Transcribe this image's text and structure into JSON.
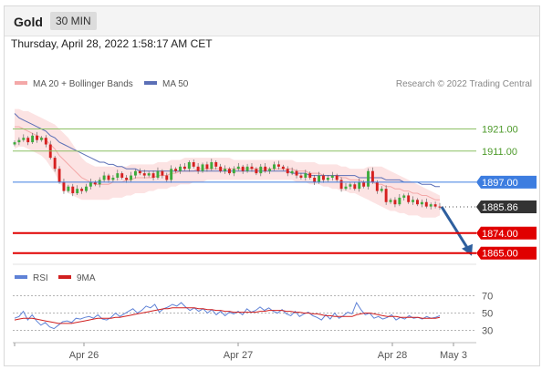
{
  "header": {
    "instrument": "Gold",
    "timeframe": "30 MIN",
    "datetime": "Thursday, April 28, 2022 1:58:17 AM CET"
  },
  "legend": {
    "ma20_bb": "MA 20 + Bollinger Bands",
    "ma50": "MA 50",
    "credit": "Research © 2022 Trading Central"
  },
  "rsi_legend": {
    "rsi": "RSI",
    "ma9": "9MA"
  },
  "colors": {
    "candle_up": "#3cab3c",
    "candle_down": "#d62020",
    "bollinger": "#fbd9d9",
    "ma20": "#f4a8a8",
    "ma50": "#5b6fb6",
    "resistance": "#8cc063",
    "pivot": "#3d7de0",
    "support": "#e00000",
    "last_price": "#333333",
    "arrow": "#2e5f9e",
    "rsi": "#5f82d6",
    "rsi_ma": "#d12020"
  },
  "chart_data": {
    "type": "line",
    "x_ticks": [
      "Apr 26",
      "Apr 27",
      "Apr 28",
      "May 3"
    ],
    "ylim": [
      1862,
      1936
    ],
    "levels": [
      {
        "label": "1921.00",
        "value": 1921.0,
        "kind": "resistance"
      },
      {
        "label": "1911.00",
        "value": 1911.0,
        "kind": "resistance"
      },
      {
        "label": "1897.00",
        "value": 1897.0,
        "kind": "pivot"
      },
      {
        "label": "1885.86",
        "value": 1885.86,
        "kind": "last"
      },
      {
        "label": "1874.00",
        "value": 1874.0,
        "kind": "support"
      },
      {
        "label": "1865.00",
        "value": 1865.0,
        "kind": "support"
      }
    ],
    "price_close": [
      1915,
      1916,
      1917,
      1915,
      1918,
      1916,
      1917,
      1914,
      1908,
      1903,
      1897,
      1893,
      1895,
      1892,
      1894,
      1893,
      1895,
      1897,
      1896,
      1898,
      1900,
      1898,
      1899,
      1901,
      1899,
      1898,
      1900,
      1902,
      1901,
      1900,
      1901,
      1899,
      1902,
      1900,
      1898,
      1903,
      1902,
      1904,
      1903,
      1906,
      1904,
      1902,
      1905,
      1903,
      1906,
      1904,
      1902,
      1903,
      1901,
      1903,
      1904,
      1902,
      1904,
      1903,
      1901,
      1904,
      1902,
      1903,
      1905,
      1904,
      1903,
      1901,
      1902,
      1900,
      1899,
      1901,
      1899,
      1897,
      1900,
      1898,
      1899,
      1900,
      1898,
      1894,
      1895,
      1896,
      1894,
      1897,
      1895,
      1902,
      1897,
      1893,
      1894,
      1888,
      1889,
      1887,
      1890,
      1891,
      1888,
      1889,
      1887,
      1888,
      1886,
      1887,
      1886,
      1885.86
    ],
    "ma50": [
      1928,
      1926,
      1925,
      1924,
      1923,
      1922,
      1921,
      1920,
      1918,
      1917,
      1915,
      1914,
      1913,
      1912,
      1911,
      1910,
      1909,
      1908,
      1907,
      1906,
      1906,
      1905,
      1905,
      1904,
      1904,
      1903,
      1903,
      1903,
      1902,
      1902,
      1902,
      1902,
      1902,
      1902,
      1902,
      1902,
      1902,
      1902,
      1902,
      1902,
      1902,
      1902,
      1902,
      1902,
      1902,
      1902,
      1902,
      1902,
      1902,
      1902,
      1902,
      1902,
      1902,
      1902,
      1902,
      1902,
      1902,
      1902,
      1902,
      1902,
      1902,
      1902,
      1901,
      1901,
      1901,
      1901,
      1900,
      1900,
      1900,
      1900,
      1900,
      1900,
      1900,
      1900,
      1900,
      1900,
      1900,
      1899,
      1899,
      1899,
      1899,
      1899,
      1899,
      1898,
      1898,
      1898,
      1898,
      1897,
      1897,
      1897,
      1897,
      1896,
      1896,
      1896,
      1895,
      1895
    ],
    "ma20": [
      1922,
      1922,
      1921,
      1920,
      1919,
      1918,
      1917,
      1916,
      1914,
      1912,
      1909,
      1907,
      1905,
      1903,
      1901,
      1899,
      1898,
      1897,
      1896,
      1896,
      1896,
      1896,
      1897,
      1897,
      1897,
      1898,
      1898,
      1899,
      1899,
      1899,
      1899,
      1899,
      1900,
      1900,
      1900,
      1901,
      1901,
      1902,
      1902,
      1902,
      1902,
      1903,
      1903,
      1903,
      1903,
      1903,
      1903,
      1903,
      1903,
      1903,
      1903,
      1903,
      1903,
      1903,
      1903,
      1903,
      1903,
      1903,
      1903,
      1903,
      1903,
      1903,
      1903,
      1902,
      1902,
      1902,
      1901,
      1901,
      1901,
      1900,
      1900,
      1900,
      1900,
      1899,
      1899,
      1898,
      1898,
      1898,
      1897,
      1897,
      1897,
      1896,
      1896,
      1895,
      1895,
      1894,
      1894,
      1893,
      1893,
      1892,
      1892,
      1891,
      1891,
      1890,
      1889,
      1889
    ],
    "bb_upper": [
      1930,
      1930,
      1929,
      1929,
      1928,
      1927,
      1926,
      1925,
      1924,
      1923,
      1921,
      1919,
      1917,
      1914,
      1911,
      1908,
      1906,
      1905,
      1904,
      1904,
      1904,
      1904,
      1904,
      1904,
      1904,
      1904,
      1905,
      1905,
      1905,
      1905,
      1905,
      1905,
      1906,
      1906,
      1906,
      1907,
      1907,
      1907,
      1908,
      1908,
      1908,
      1908,
      1908,
      1908,
      1908,
      1908,
      1908,
      1908,
      1908,
      1907,
      1907,
      1907,
      1907,
      1907,
      1907,
      1907,
      1907,
      1907,
      1907,
      1907,
      1907,
      1907,
      1907,
      1906,
      1906,
      1906,
      1906,
      1906,
      1905,
      1905,
      1905,
      1905,
      1905,
      1904,
      1904,
      1903,
      1903,
      1903,
      1903,
      1904,
      1904,
      1904,
      1904,
      1903,
      1902,
      1901,
      1900,
      1899,
      1898,
      1897,
      1896,
      1895,
      1894,
      1893,
      1892,
      1891
    ],
    "bb_lower": [
      1912,
      1913,
      1913,
      1912,
      1911,
      1910,
      1909,
      1907,
      1904,
      1901,
      1897,
      1894,
      1892,
      1891,
      1890,
      1889,
      1889,
      1889,
      1889,
      1889,
      1889,
      1889,
      1890,
      1890,
      1890,
      1891,
      1891,
      1892,
      1892,
      1892,
      1893,
      1893,
      1894,
      1894,
      1894,
      1895,
      1895,
      1896,
      1896,
      1896,
      1897,
      1897,
      1897,
      1898,
      1898,
      1898,
      1898,
      1898,
      1898,
      1898,
      1898,
      1898,
      1898,
      1898,
      1898,
      1898,
      1898,
      1898,
      1898,
      1898,
      1898,
      1898,
      1898,
      1897,
      1897,
      1897,
      1896,
      1896,
      1896,
      1895,
      1895,
      1894,
      1894,
      1893,
      1893,
      1892,
      1892,
      1891,
      1890,
      1889,
      1888,
      1887,
      1886,
      1885,
      1884,
      1884,
      1883,
      1883,
      1882,
      1882,
      1882,
      1881,
      1881,
      1881,
      1881,
      1882
    ],
    "rsi_ticks": [
      70,
      50,
      30
    ],
    "rsi_ylim": [
      20,
      80
    ],
    "rsi": [
      44,
      46,
      52,
      42,
      48,
      41,
      36,
      39,
      34,
      32,
      36,
      40,
      41,
      39,
      44,
      43,
      45,
      46,
      44,
      48,
      43,
      42,
      45,
      50,
      46,
      49,
      52,
      55,
      50,
      53,
      58,
      56,
      60,
      51,
      55,
      57,
      60,
      58,
      62,
      57,
      53,
      56,
      52,
      55,
      50,
      54,
      48,
      52,
      47,
      51,
      49,
      52,
      48,
      55,
      51,
      53,
      57,
      53,
      56,
      52,
      50,
      54,
      49,
      47,
      52,
      46,
      49,
      51,
      47,
      45,
      42,
      48,
      43,
      50,
      44,
      47,
      51,
      49,
      62,
      54,
      48,
      50,
      44,
      46,
      43,
      45,
      48,
      42,
      45,
      43,
      47,
      44,
      45,
      43,
      46,
      44,
      45,
      47
    ],
    "rsi_ma": [
      42,
      43,
      44,
      44,
      44,
      43,
      42,
      41,
      40,
      39,
      38,
      38,
      38,
      38,
      39,
      40,
      41,
      42,
      43,
      44,
      44,
      44,
      44,
      45,
      45,
      46,
      47,
      48,
      49,
      50,
      51,
      52,
      53,
      54,
      55,
      55,
      56,
      56,
      56,
      56,
      56,
      56,
      55,
      55,
      54,
      54,
      53,
      53,
      52,
      52,
      51,
      51,
      51,
      51,
      51,
      51,
      52,
      52,
      53,
      53,
      53,
      53,
      52,
      52,
      51,
      51,
      50,
      50,
      49,
      49,
      48,
      47,
      47,
      46,
      46,
      46,
      46,
      46,
      48,
      49,
      50,
      50,
      49,
      48,
      47,
      46,
      46,
      46,
      45,
      45,
      45,
      45,
      45,
      44,
      44,
      44,
      44,
      45
    ]
  }
}
